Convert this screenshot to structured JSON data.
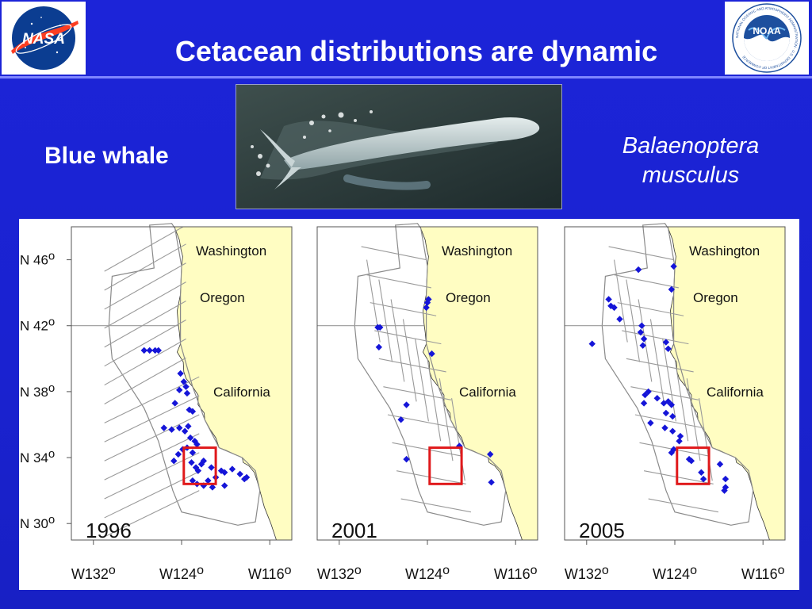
{
  "slide": {
    "title": "Cetacean distributions are dynamic",
    "common_name": "Blue whale",
    "scientific_name_line1": "Balaenoptera",
    "scientific_name_line2": "musculus"
  },
  "logos": {
    "left": {
      "icon": "nasa-logo",
      "text": "NASA"
    },
    "right": {
      "icon": "noaa-logo",
      "text": "NOAA",
      "ring_text": "NATIONAL OCEANIC AND ATMOSPHERIC ADMINISTRATION · U.S. DEPARTMENT OF COMMERCE"
    }
  },
  "colors": {
    "background": "#1a22d4",
    "land": "#fffdc2",
    "sighting": "#1515d8",
    "study_box": "#e0191b",
    "transect": "#9a9a9a"
  },
  "photo": {
    "subject": "blue-whale-photo"
  },
  "chart_data": {
    "type": "scatter",
    "marker": "diamond",
    "xlim": [
      -134,
      -114
    ],
    "ylim": [
      29,
      48
    ],
    "x_ticks": [
      -132,
      -124,
      -116
    ],
    "x_tick_labels": [
      "W132o",
      "W124o",
      "W116o"
    ],
    "y_ticks": [
      46,
      42,
      38,
      34,
      30
    ],
    "y_tick_labels": [
      "N 46o",
      "N 42o",
      "N 38o",
      "N 34o",
      "N 30o"
    ],
    "region_labels": [
      "Washington",
      "Oregon",
      "California"
    ],
    "study_box": {
      "lon": [
        -123.8,
        -120.9
      ],
      "lat": [
        32.4,
        34.6
      ]
    },
    "panels": [
      {
        "year": "1996",
        "points": [
          [
            -127.4,
            40.5
          ],
          [
            -126.9,
            40.5
          ],
          [
            -126.4,
            40.5
          ],
          [
            -126.1,
            40.5
          ],
          [
            -124.1,
            39.1
          ],
          [
            -123.8,
            38.6
          ],
          [
            -123.6,
            38.3
          ],
          [
            -123.5,
            37.9
          ],
          [
            -124.2,
            38.1
          ],
          [
            -124.6,
            37.3
          ],
          [
            -123.3,
            36.9
          ],
          [
            -123.0,
            36.8
          ],
          [
            -123.4,
            35.9
          ],
          [
            -123.7,
            35.6
          ],
          [
            -124.2,
            35.8
          ],
          [
            -124.9,
            35.7
          ],
          [
            -125.6,
            35.8
          ],
          [
            -123.2,
            35.2
          ],
          [
            -122.8,
            35.0
          ],
          [
            -122.6,
            34.8
          ],
          [
            -123.0,
            34.3
          ],
          [
            -123.5,
            34.6
          ],
          [
            -123.9,
            34.5
          ],
          [
            -124.3,
            34.2
          ],
          [
            -124.7,
            33.8
          ],
          [
            -123.1,
            33.7
          ],
          [
            -122.7,
            33.4
          ],
          [
            -122.5,
            33.2
          ],
          [
            -122.2,
            33.6
          ],
          [
            -122.0,
            33.8
          ],
          [
            -121.3,
            33.4
          ],
          [
            -120.4,
            33.2
          ],
          [
            -120.1,
            33.1
          ],
          [
            -119.4,
            33.3
          ],
          [
            -118.7,
            33.0
          ],
          [
            -118.1,
            32.8
          ],
          [
            -118.3,
            32.7
          ],
          [
            -120.9,
            32.8
          ],
          [
            -121.6,
            32.6
          ],
          [
            -122.0,
            32.3
          ],
          [
            -122.6,
            32.4
          ],
          [
            -123.0,
            32.6
          ],
          [
            -121.2,
            32.2
          ],
          [
            -120.1,
            32.3
          ]
        ]
      },
      {
        "year": "2001",
        "points": [
          [
            -123.9,
            43.6
          ],
          [
            -124.0,
            43.4
          ],
          [
            -124.1,
            43.1
          ],
          [
            -128.5,
            41.9
          ],
          [
            -128.3,
            41.9
          ],
          [
            -128.4,
            40.7
          ],
          [
            -123.6,
            40.3
          ],
          [
            -125.9,
            37.2
          ],
          [
            -126.4,
            36.3
          ],
          [
            -125.9,
            33.9
          ],
          [
            -121.1,
            34.7
          ],
          [
            -118.3,
            34.2
          ],
          [
            -118.2,
            32.5
          ]
        ]
      },
      {
        "year": "2005",
        "points": [
          [
            -127.3,
            45.4
          ],
          [
            -124.1,
            45.6
          ],
          [
            -124.3,
            44.2
          ],
          [
            -130.0,
            43.6
          ],
          [
            -129.8,
            43.2
          ],
          [
            -129.5,
            43.1
          ],
          [
            -129.0,
            42.4
          ],
          [
            -127.0,
            42.0
          ],
          [
            -127.1,
            41.6
          ],
          [
            -126.8,
            41.2
          ],
          [
            -126.9,
            40.8
          ],
          [
            -124.8,
            41.0
          ],
          [
            -124.6,
            40.6
          ],
          [
            -131.5,
            40.9
          ],
          [
            -126.4,
            38.0
          ],
          [
            -126.7,
            37.8
          ],
          [
            -126.8,
            37.3
          ],
          [
            -125.6,
            37.6
          ],
          [
            -125.0,
            37.3
          ],
          [
            -124.6,
            37.4
          ],
          [
            -124.3,
            37.2
          ],
          [
            -124.2,
            36.5
          ],
          [
            -124.8,
            36.7
          ],
          [
            -126.2,
            36.1
          ],
          [
            -124.9,
            35.8
          ],
          [
            -124.2,
            35.6
          ],
          [
            -123.5,
            35.3
          ],
          [
            -123.6,
            35.0
          ],
          [
            -124.1,
            34.5
          ],
          [
            -124.3,
            34.3
          ],
          [
            -122.7,
            33.9
          ],
          [
            -122.5,
            33.8
          ],
          [
            -121.6,
            33.1
          ],
          [
            -121.4,
            32.7
          ],
          [
            -119.9,
            33.6
          ],
          [
            -119.4,
            32.7
          ],
          [
            -119.4,
            32.2
          ],
          [
            -119.5,
            32.0
          ]
        ]
      }
    ]
  }
}
